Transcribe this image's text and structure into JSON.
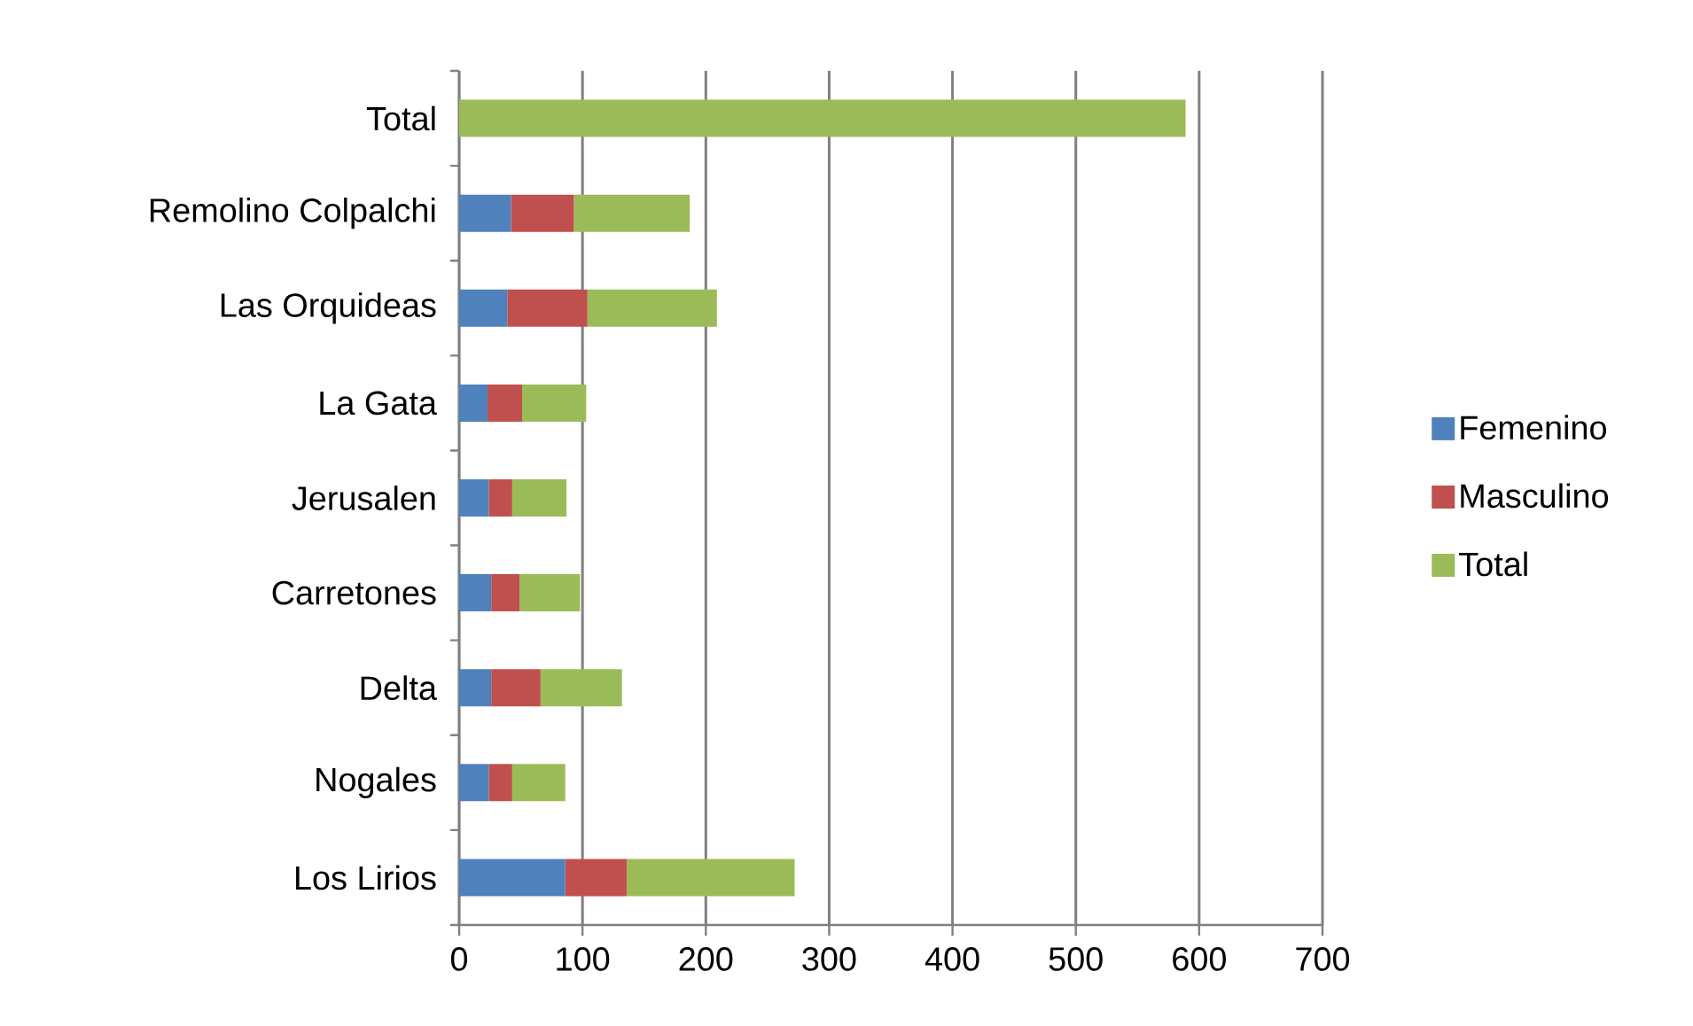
{
  "chart_data": {
    "type": "bar",
    "orientation": "horizontal",
    "stacked": true,
    "categories": [
      "Total",
      "Remolino Colpalchi",
      "Las Orquideas",
      "La Gata",
      "Jerusalen",
      "Carretones",
      "Delta",
      "Nogales",
      "Los Lirios"
    ],
    "series": [
      {
        "name": "Femenino",
        "color": "#4f81bd",
        "values": [
          null,
          42,
          39,
          23,
          24,
          26,
          26,
          24,
          86
        ]
      },
      {
        "name": "Masculino",
        "color": "#c0504d",
        "values": [
          null,
          51,
          65,
          28,
          19,
          23,
          40,
          19,
          50
        ]
      },
      {
        "name": "Total",
        "color": "#9bbb59",
        "values": [
          589,
          94,
          105,
          52,
          44,
          49,
          66,
          43,
          136
        ]
      }
    ],
    "xlim": [
      0,
      700
    ],
    "xticks": [
      0,
      100,
      200,
      300,
      400,
      500,
      600,
      700
    ],
    "grid": "x",
    "legend": "right"
  }
}
